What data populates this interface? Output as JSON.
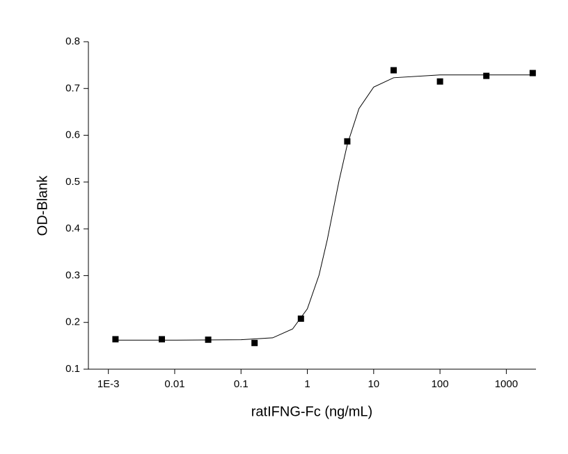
{
  "chart_data": {
    "type": "scatter",
    "x_label": "ratIFNG-Fc (ng/mL)",
    "y_label": "OD-Blank",
    "xscale": "log",
    "xlim": [
      0.0005,
      2800
    ],
    "ylim": [
      0.1,
      0.8
    ],
    "xticks": [
      {
        "value": 0.001,
        "label": "1E-3"
      },
      0.01,
      0.1,
      1,
      10,
      100,
      1000
    ],
    "yticks": [
      0.1,
      0.2,
      0.3,
      0.4,
      0.5,
      0.6,
      0.7,
      0.8
    ],
    "series": [
      {
        "type": "scatter",
        "color": "#000000",
        "x": [
          0.00128,
          0.0064,
          0.032,
          0.16,
          0.8,
          4,
          20,
          100,
          500,
          2500
        ],
        "values": [
          0.164,
          0.164,
          0.163,
          0.156,
          0.208,
          0.587,
          0.739,
          0.715,
          0.727,
          0.733
        ]
      },
      {
        "type": "line",
        "color": "#000000",
        "x": [
          0.0013,
          0.01,
          0.1,
          0.3,
          0.6,
          1,
          1.5,
          2,
          2.5,
          3,
          4,
          6,
          10,
          20,
          100,
          2500
        ],
        "values": [
          0.162,
          0.162,
          0.163,
          0.167,
          0.186,
          0.229,
          0.301,
          0.377,
          0.446,
          0.502,
          0.58,
          0.657,
          0.703,
          0.723,
          0.729,
          0.729
        ]
      }
    ]
  }
}
